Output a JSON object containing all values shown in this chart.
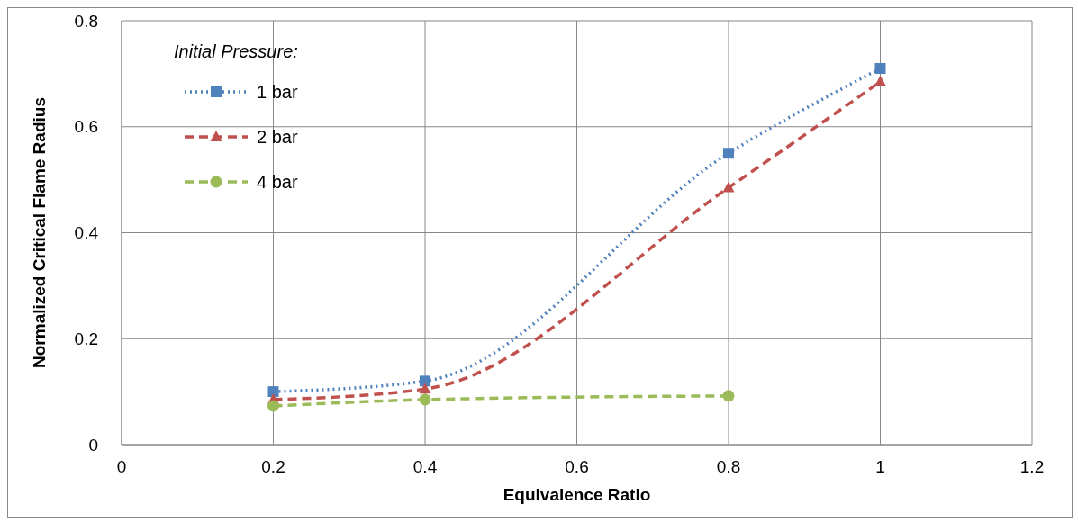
{
  "chart_data": {
    "type": "line",
    "xlabel": "Equivalence Ratio",
    "ylabel": "Normalized Critical Flame Radius",
    "legend_title": "Initial Pressure:",
    "legend": "top left",
    "grid": true,
    "xlim": [
      0,
      1.2
    ],
    "xticks": [
      0,
      0.2,
      0.4,
      0.6,
      0.8,
      1,
      1.2
    ],
    "ylim": [
      0,
      0.8
    ],
    "yticks": [
      0,
      0.2,
      0.4,
      0.6,
      0.8
    ],
    "series": [
      {
        "name": "1 bar",
        "color": "#4f81bd",
        "x": [
          0.2,
          0.4,
          0.8,
          1
        ],
        "values": [
          0.1,
          0.12,
          0.55,
          0.71
        ],
        "marker": "square",
        "line_style": "dotted"
      },
      {
        "name": "2 bar",
        "color": "#c0504d",
        "x": [
          0.2,
          0.4,
          0.8,
          1
        ],
        "values": [
          0.085,
          0.105,
          0.485,
          0.685
        ],
        "marker": "triangle",
        "line_style": "dashed"
      },
      {
        "name": "4 bar",
        "color": "#9bbb59",
        "x": [
          0.2,
          0.4,
          0.8
        ],
        "values": [
          0.073,
          0.085,
          0.092
        ],
        "marker": "circle",
        "line_style": "dashed"
      }
    ]
  }
}
